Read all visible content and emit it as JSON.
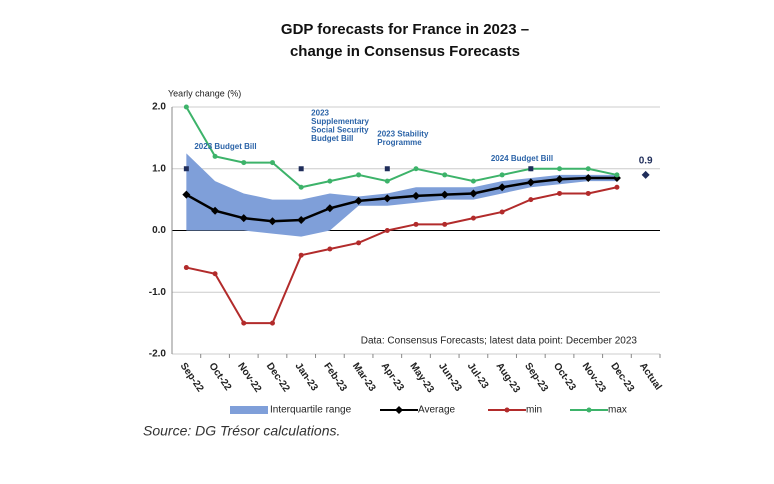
{
  "chart_data": {
    "type": "line",
    "title": [
      "GDP forecasts for France in 2023 –",
      "change in Consensus Forecasts"
    ],
    "y_label": "Yearly change (%)",
    "categories": [
      "Sep-22",
      "Oct-22",
      "Nov-22",
      "Dec-22",
      "Jan-23",
      "Feb-23",
      "Mar-23",
      "Apr-23",
      "May-23",
      "Jun-23",
      "Jul-23",
      "Aug-23",
      "Sep-23",
      "Oct-23",
      "Nov-23",
      "Dec-23",
      "Actual"
    ],
    "ylim": [
      -2,
      2
    ],
    "yticks": [
      {
        "value": 2,
        "label": "2.0"
      },
      {
        "value": 1,
        "label": "1.0"
      },
      {
        "value": 0,
        "label": "0.0"
      },
      {
        "value": -1,
        "label": "-1.0"
      },
      {
        "value": -2,
        "label": "-2.0"
      }
    ],
    "grid": true,
    "series": [
      {
        "name": "Interquartile range",
        "color": "#7f9fd9",
        "kind": "band",
        "values": [
          1.25,
          0.8,
          0.6,
          0.5,
          0.5,
          0.6,
          0.55,
          0.6,
          0.7,
          0.7,
          0.7,
          0.8,
          0.85,
          0.9,
          0.9,
          0.9,
          null
        ],
        "lower": [
          0.0,
          0.0,
          0.0,
          -0.05,
          -0.1,
          0.0,
          0.4,
          0.4,
          0.45,
          0.5,
          0.5,
          0.6,
          0.7,
          0.75,
          0.8,
          0.8,
          null
        ]
      },
      {
        "name": "Average",
        "color": "#000000",
        "kind": "line",
        "marker": "diamond",
        "values": [
          0.58,
          0.32,
          0.2,
          0.15,
          0.17,
          0.36,
          0.48,
          0.52,
          0.56,
          0.58,
          0.6,
          0.7,
          0.78,
          0.83,
          0.85,
          0.85,
          null
        ]
      },
      {
        "name": "min",
        "color": "#b22b2b",
        "kind": "line",
        "marker": "circle",
        "values": [
          -0.6,
          -0.7,
          -1.5,
          -1.5,
          -0.4,
          -0.3,
          -0.2,
          0.0,
          0.1,
          0.1,
          0.2,
          0.3,
          0.5,
          0.6,
          0.6,
          0.7,
          null
        ]
      },
      {
        "name": "max",
        "color": "#3db36a",
        "kind": "line",
        "marker": "circle",
        "values": [
          2.0,
          1.2,
          1.1,
          1.1,
          0.7,
          0.8,
          0.9,
          0.8,
          1.0,
          0.9,
          0.8,
          0.9,
          1.0,
          1.0,
          1.0,
          0.9,
          null
        ]
      }
    ],
    "actual": {
      "value": 0.9,
      "label": "0.9",
      "color": "#1f2d5a"
    },
    "events": [
      {
        "category": "Sep-22",
        "value": 1.0,
        "lines": [
          "2023 Budget Bill"
        ]
      },
      {
        "category": "Jan-23",
        "value": 1.0,
        "lines": [
          "2023",
          "Supplementary",
          "Social Security",
          "Budget Bill"
        ]
      },
      {
        "category": "Apr-23",
        "value": 1.0,
        "lines": [
          "2023 Stability",
          "Programme"
        ]
      },
      {
        "category": "Sep-23",
        "value": 1.0,
        "lines": [
          "2024 Budget Bill"
        ]
      }
    ],
    "note": "Data: Consensus Forecasts; latest data point: December 2023",
    "source": "Source: DG Trésor calculations."
  }
}
